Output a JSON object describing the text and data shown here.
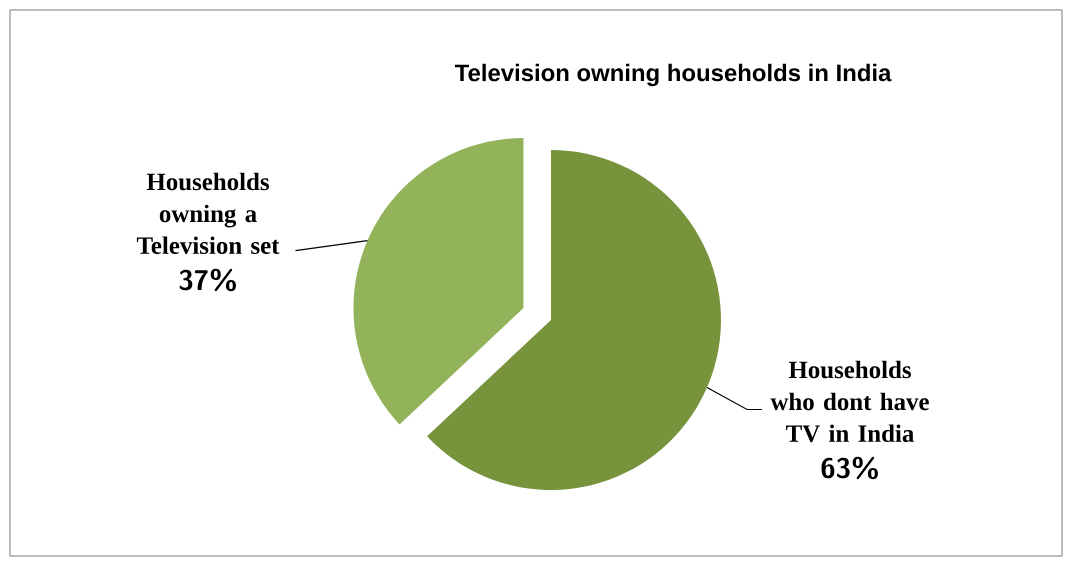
{
  "chart_data": {
    "type": "pie",
    "title": "Television owning households in India",
    "categories": [
      "Households who dont have TV in India",
      "Households owning a Television set"
    ],
    "values": [
      63,
      37
    ],
    "value_labels": [
      "63%",
      "37%"
    ],
    "colors": [
      "#77933c",
      "#93b35a"
    ]
  }
}
